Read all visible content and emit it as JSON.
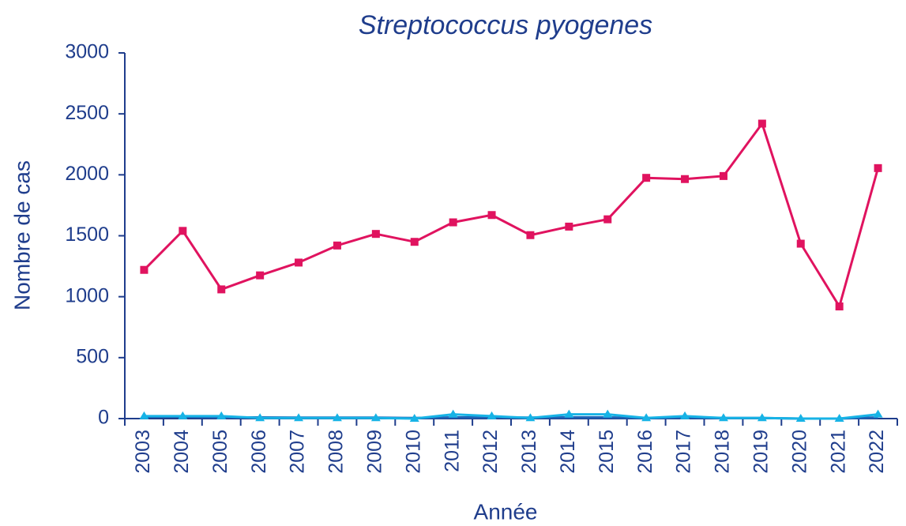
{
  "chart_data": {
    "type": "line",
    "title": "Streptococcus pyogenes",
    "x_label": "Année",
    "y_label": "Nombre de cas",
    "categories": [
      "2003",
      "2004",
      "2005",
      "2006",
      "2007",
      "2008",
      "2009",
      "2010",
      "2011",
      "2012",
      "2013",
      "2014",
      "2015",
      "2016",
      "2017",
      "2018",
      "2019",
      "2020",
      "2021",
      "2022"
    ],
    "series": [
      {
        "color": "#e0135f",
        "marker": "square",
        "values": [
          1220,
          1540,
          1060,
          1175,
          1280,
          1420,
          1515,
          1450,
          1610,
          1670,
          1505,
          1575,
          1635,
          1975,
          1965,
          1990,
          2420,
          1435,
          920,
          2055
        ]
      },
      {
        "color": "#1f63b5",
        "marker": "none",
        "values": [
          15,
          15,
          10,
          10,
          8,
          8,
          8,
          5,
          10,
          10,
          8,
          10,
          10,
          5,
          8,
          5,
          5,
          0,
          0,
          10
        ]
      },
      {
        "color": "#17b3e6",
        "marker": "triangle",
        "values": [
          20,
          20,
          20,
          5,
          5,
          5,
          5,
          0,
          35,
          20,
          5,
          35,
          35,
          5,
          20,
          5,
          5,
          0,
          0,
          35
        ]
      }
    ],
    "ylim": [
      0,
      3000
    ],
    "yticks": [
      0,
      500,
      1000,
      1500,
      2000,
      2500,
      3000
    ]
  }
}
